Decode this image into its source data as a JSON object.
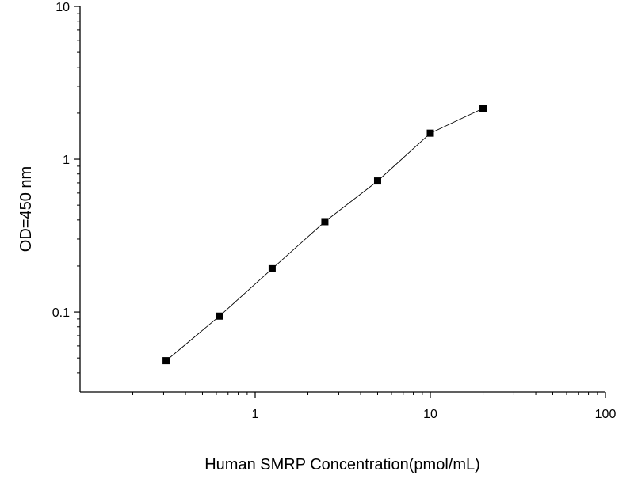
{
  "chart_data": {
    "type": "line",
    "title": "",
    "xlabel": "Human SMRP Concentration(pmol/mL)",
    "ylabel": "OD=450 nm",
    "xscale": "log",
    "yscale": "log",
    "xlim": [
      0.1,
      100
    ],
    "ylim": [
      0.03,
      10
    ],
    "x_ticks": [
      1,
      10,
      100
    ],
    "x_tick_labels": [
      "1",
      "10",
      "100"
    ],
    "y_ticks": [
      0.1,
      1,
      10
    ],
    "y_tick_labels": [
      "0.1",
      "1",
      "10"
    ],
    "grid": false,
    "legend": "none",
    "series": [
      {
        "x": [
          0.31,
          0.625,
          1.25,
          2.5,
          5,
          10,
          20
        ],
        "y": [
          0.048,
          0.094,
          0.192,
          0.39,
          0.72,
          1.48,
          2.15
        ],
        "color": "#000000",
        "marker": "square"
      }
    ]
  }
}
